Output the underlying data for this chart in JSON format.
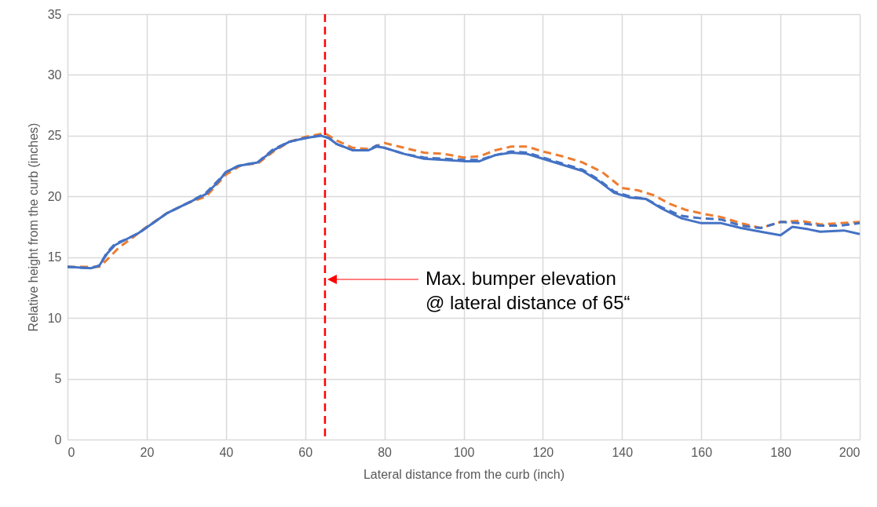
{
  "chart_data": {
    "type": "line",
    "xlabel": "Lateral distance from the curb (inch)",
    "ylabel": "Relative height from the curb (inches)",
    "xlim": [
      0,
      200
    ],
    "xticks": [
      0,
      20,
      40,
      60,
      80,
      100,
      120,
      140,
      160,
      180,
      200
    ],
    "ylim": [
      0,
      35
    ],
    "yticks": [
      0,
      5,
      10,
      15,
      20,
      25,
      30,
      35
    ],
    "grid": true,
    "marker": "none",
    "series": [
      {
        "color": "#ed7d31",
        "line_style": "dashed",
        "x": [
          0,
          8,
          10,
          13,
          16,
          20,
          25,
          30,
          35,
          40,
          44,
          48,
          52,
          56,
          60,
          65,
          68,
          72,
          76,
          80,
          85,
          90,
          95,
          100,
          104,
          108,
          112,
          116,
          120,
          125,
          130,
          135,
          140,
          144,
          148,
          152,
          156,
          160,
          165,
          170,
          175,
          180,
          185,
          190,
          195,
          200
        ],
        "values": [
          14.2,
          14.2,
          14.8,
          15.8,
          16.5,
          17.5,
          18.6,
          19.4,
          20.0,
          21.8,
          22.6,
          22.7,
          23.7,
          24.5,
          24.9,
          25.2,
          24.6,
          24.0,
          23.9,
          24.4,
          24.0,
          23.6,
          23.5,
          23.2,
          23.3,
          23.8,
          24.1,
          24.1,
          23.7,
          23.3,
          22.8,
          22.0,
          20.7,
          20.5,
          20.1,
          19.4,
          18.9,
          18.6,
          18.3,
          17.8,
          17.4,
          17.9,
          18.0,
          17.7,
          17.8,
          17.9
        ]
      },
      {
        "color": "#4472c4",
        "line_style": "dashed",
        "x": [
          0,
          6,
          8,
          10,
          12,
          15,
          18,
          22,
          25,
          30,
          35,
          38,
          40,
          43,
          48,
          52,
          56,
          60,
          64,
          66,
          68,
          72,
          76,
          78,
          80,
          85,
          90,
          95,
          100,
          104,
          108,
          112,
          116,
          120,
          125,
          130,
          134,
          138,
          142,
          146,
          150,
          155,
          160,
          165,
          170,
          175,
          180,
          185,
          190,
          195,
          200
        ],
        "values": [
          14.2,
          14.1,
          14.3,
          15.4,
          16.1,
          16.5,
          17.0,
          17.9,
          18.6,
          19.4,
          20.3,
          21.3,
          22.0,
          22.5,
          22.8,
          23.9,
          24.5,
          24.8,
          25.0,
          24.8,
          24.3,
          23.8,
          23.8,
          24.2,
          24.0,
          23.5,
          23.2,
          23.1,
          23.0,
          23.0,
          23.4,
          23.7,
          23.6,
          23.2,
          22.7,
          22.2,
          21.4,
          20.4,
          20.0,
          19.8,
          19.1,
          18.4,
          18.2,
          18.1,
          17.6,
          17.4,
          17.9,
          17.8,
          17.6,
          17.6,
          17.8
        ]
      },
      {
        "color": "#4472c4",
        "line_style": "solid",
        "x": [
          0,
          6,
          8,
          10,
          12,
          15,
          18,
          22,
          25,
          30,
          35,
          38,
          40,
          43,
          48,
          52,
          56,
          60,
          64,
          66,
          68,
          72,
          76,
          78,
          80,
          85,
          90,
          95,
          100,
          104,
          108,
          112,
          116,
          120,
          125,
          130,
          134,
          138,
          142,
          146,
          150,
          155,
          160,
          165,
          170,
          175,
          180,
          183,
          187,
          190,
          196,
          200
        ],
        "values": [
          14.2,
          14.1,
          14.3,
          15.3,
          16.0,
          16.5,
          17.0,
          17.9,
          18.6,
          19.4,
          20.2,
          21.2,
          22.0,
          22.5,
          22.8,
          23.8,
          24.5,
          24.8,
          25.0,
          24.8,
          24.3,
          23.8,
          23.8,
          24.1,
          24.0,
          23.5,
          23.1,
          23.0,
          22.9,
          22.9,
          23.4,
          23.6,
          23.5,
          23.1,
          22.6,
          22.1,
          21.3,
          20.3,
          19.9,
          19.8,
          19.0,
          18.2,
          17.8,
          17.8,
          17.4,
          17.1,
          16.8,
          17.5,
          17.3,
          17.1,
          17.2,
          16.9
        ]
      }
    ],
    "ref_lines": [
      {
        "axis": "x",
        "value": 65,
        "color": "#ff0000",
        "line_style": "dashed"
      }
    ],
    "annotations": [
      "Max. bumper elevation\n@ lateral distance of 65“"
    ]
  }
}
